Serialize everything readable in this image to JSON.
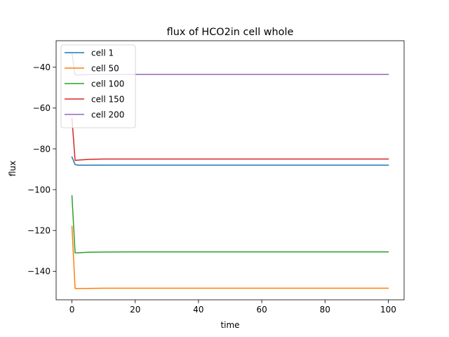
{
  "chart_data": {
    "type": "line",
    "title": "flux of HCO2in cell whole",
    "xlabel": "time",
    "ylabel": "flux",
    "xlim": [
      -5,
      105
    ],
    "ylim": [
      -154,
      -27
    ],
    "xticks": [
      0,
      20,
      40,
      60,
      80,
      100
    ],
    "yticks": [
      -140,
      -120,
      -100,
      -80,
      -60,
      -40
    ],
    "grid": false,
    "legend_position": "top-left",
    "series": [
      {
        "name": "cell 1",
        "color": "#1f77b4",
        "points": [
          [
            0,
            -84
          ],
          [
            1,
            -87.7
          ],
          [
            2,
            -88
          ],
          [
            5,
            -88
          ],
          [
            10,
            -88
          ],
          [
            20,
            -88
          ],
          [
            40,
            -88
          ],
          [
            60,
            -88
          ],
          [
            80,
            -88
          ],
          [
            100,
            -88
          ]
        ]
      },
      {
        "name": "cell 50",
        "color": "#ff7f0e",
        "points": [
          [
            0,
            -118
          ],
          [
            1,
            -148.5
          ],
          [
            2,
            -148.5
          ],
          [
            5,
            -148.4
          ],
          [
            10,
            -148.3
          ],
          [
            20,
            -148.3
          ],
          [
            40,
            -148.3
          ],
          [
            60,
            -148.3
          ],
          [
            80,
            -148.3
          ],
          [
            100,
            -148.3
          ]
        ]
      },
      {
        "name": "cell 100",
        "color": "#2ca02c",
        "points": [
          [
            0,
            -103
          ],
          [
            1,
            -131
          ],
          [
            2,
            -131
          ],
          [
            5,
            -130.7
          ],
          [
            10,
            -130.6
          ],
          [
            20,
            -130.5
          ],
          [
            40,
            -130.5
          ],
          [
            60,
            -130.5
          ],
          [
            80,
            -130.5
          ],
          [
            100,
            -130.5
          ]
        ]
      },
      {
        "name": "cell 150",
        "color": "#d62728",
        "points": [
          [
            0,
            -65
          ],
          [
            1,
            -85.7
          ],
          [
            2,
            -85.5
          ],
          [
            5,
            -85.2
          ],
          [
            10,
            -85
          ],
          [
            20,
            -85
          ],
          [
            40,
            -85
          ],
          [
            60,
            -85
          ],
          [
            80,
            -85
          ],
          [
            100,
            -85
          ]
        ]
      },
      {
        "name": "cell 200",
        "color": "#9467bd",
        "points": [
          [
            0,
            -33
          ],
          [
            1,
            -43.8
          ],
          [
            2,
            -43.8
          ],
          [
            5,
            -43.6
          ],
          [
            10,
            -43.5
          ],
          [
            20,
            -43.5
          ],
          [
            40,
            -43.5
          ],
          [
            60,
            -43.5
          ],
          [
            80,
            -43.5
          ],
          [
            100,
            -43.5
          ]
        ]
      }
    ]
  }
}
